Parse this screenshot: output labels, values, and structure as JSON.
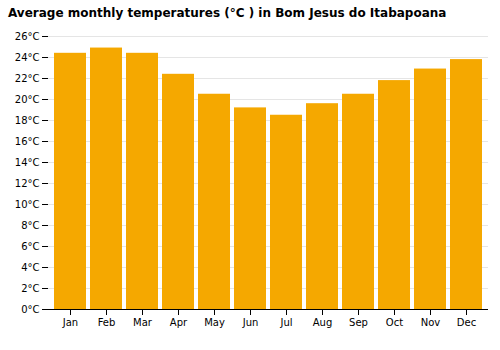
{
  "chart_data": {
    "type": "bar",
    "title": "Average monthly temperatures (°C ) in Bom Jesus do Itabapoana",
    "categories": [
      "Jan",
      "Feb",
      "Mar",
      "Apr",
      "May",
      "Jun",
      "Jul",
      "Aug",
      "Sep",
      "Oct",
      "Nov",
      "Dec"
    ],
    "values": [
      24.4,
      24.9,
      24.4,
      22.4,
      20.5,
      19.2,
      18.5,
      19.6,
      20.5,
      21.8,
      22.9,
      23.8
    ],
    "color": "#F5A800",
    "ylim": [
      0,
      26
    ],
    "yticks": [
      {
        "value": 0,
        "label": "0°C"
      },
      {
        "value": 2,
        "label": "2°C"
      },
      {
        "value": 4,
        "label": "4°C"
      },
      {
        "value": 6,
        "label": "6°C"
      },
      {
        "value": 8,
        "label": "8°C"
      },
      {
        "value": 10,
        "label": "10°C"
      },
      {
        "value": 12,
        "label": "12°C"
      },
      {
        "value": 14,
        "label": "14°C"
      },
      {
        "value": 16,
        "label": "16°C"
      },
      {
        "value": 18,
        "label": "18°C"
      },
      {
        "value": 20,
        "label": "20°C"
      },
      {
        "value": 22,
        "label": "22°C"
      },
      {
        "value": 24,
        "label": "24°C"
      },
      {
        "value": 26,
        "label": "26°C"
      }
    ],
    "grid": true
  }
}
